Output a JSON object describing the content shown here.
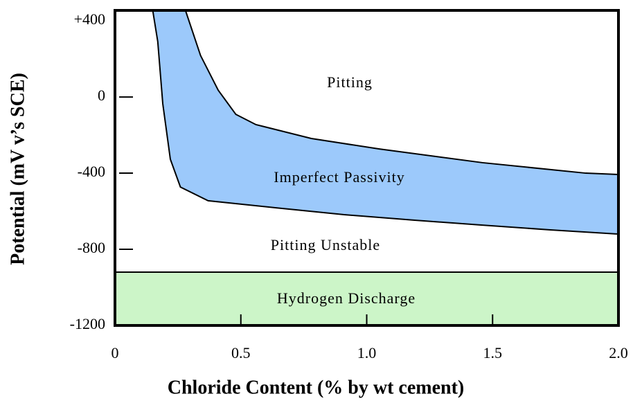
{
  "chart_data": {
    "type": "region",
    "xlabel": "Chloride Content (% by wt cement)",
    "ylabel": "Potential (mV v’s SCE)",
    "xlim": [
      0,
      2
    ],
    "ylim": [
      -1200,
      455
    ],
    "xticks": [
      0,
      0.5,
      {
        "value": 1,
        "label": "1.0"
      },
      1.5,
      {
        "value": 2,
        "label": "2.0"
      }
    ],
    "yticks": [
      {
        "value": 400,
        "label": "+400"
      },
      0,
      -400,
      -800,
      -1200
    ],
    "band": {
      "color": "#9cc9fb",
      "upper": {
        "x": [
          0.28,
          0.34,
          0.41,
          0.48,
          0.56,
          0.78,
          1.05,
          1.46,
          1.87,
          2.0
        ],
        "y": [
          455,
          218,
          36,
          -91,
          -145,
          -218,
          -273,
          -345,
          -400,
          -407
        ]
      },
      "lower": {
        "x": [
          0.15,
          0.17,
          0.19,
          0.22,
          0.26,
          0.37,
          0.64,
          0.91,
          1.19,
          1.46,
          1.73,
          2.0
        ],
        "y": [
          455,
          291,
          -36,
          -327,
          -473,
          -545,
          -582,
          -618,
          -647,
          -673,
          -698,
          -720
        ]
      }
    },
    "hydrogen_limit": -920,
    "hydrogen_color": "#ccf5c8",
    "annotations": [
      "Pitting",
      "Imperfect Passivity",
      "Pitting Unstable",
      "Hydrogen Discharge"
    ]
  }
}
